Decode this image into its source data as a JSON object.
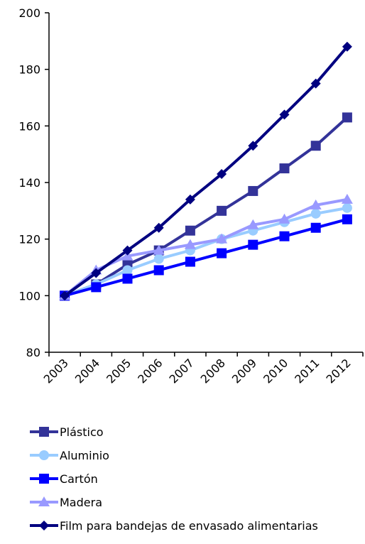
{
  "chart_data": {
    "type": "line",
    "categories": [
      "2003",
      "2004",
      "2005",
      "2006",
      "2007",
      "2008",
      "2009",
      "2010",
      "2011",
      "2012"
    ],
    "ylim": [
      80,
      200
    ],
    "yticks": [
      80,
      100,
      120,
      140,
      160,
      180,
      200
    ],
    "grid": false,
    "legend_position": "bottom",
    "series": [
      {
        "name": "Plástico",
        "color": "#333399",
        "marker": "square",
        "values": [
          100,
          104,
          111,
          116,
          123,
          130,
          137,
          145,
          153,
          163
        ]
      },
      {
        "name": "Aluminio",
        "color": "#99CCFF",
        "marker": "circle",
        "values": [
          100,
          104,
          109,
          113,
          116,
          120,
          123,
          126,
          129,
          131
        ]
      },
      {
        "name": "Cartón",
        "color": "#0000FF",
        "marker": "square",
        "values": [
          100,
          103,
          106,
          109,
          112,
          115,
          118,
          121,
          124,
          127
        ]
      },
      {
        "name": "Madera",
        "color": "#9999FF",
        "marker": "triangle",
        "values": [
          100,
          109,
          114,
          116,
          118,
          120,
          125,
          127,
          132,
          134
        ]
      },
      {
        "name": "Film para bandejas de envasado alimentarias",
        "color": "#000080",
        "marker": "diamond",
        "values": [
          100,
          108,
          116,
          124,
          134,
          143,
          153,
          164,
          175,
          188
        ]
      }
    ]
  }
}
